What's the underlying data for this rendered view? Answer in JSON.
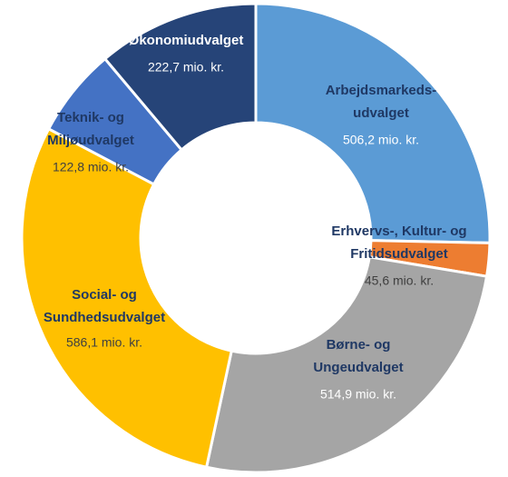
{
  "chart_data": {
    "type": "donut",
    "categories": [
      [
        "Arbejdsmarkeds-",
        "udvalget"
      ],
      [
        "Erhvervs-, Kultur- og",
        "Fritidsudvalget"
      ],
      [
        "Børne- og",
        "Ungeudvalget"
      ],
      [
        "Social- og",
        "Sundhedsudvalget"
      ],
      [
        "Teknik- og",
        "Miljøudvalget"
      ],
      [
        "Økonomiudvalget"
      ]
    ],
    "values": [
      506.2,
      45.6,
      514.9,
      586.1,
      122.8,
      222.7
    ],
    "value_labels": [
      "506,2 mio. kr.",
      "45,6 mio. kr.",
      "514,9 mio. kr.",
      "586,1 mio. kr.",
      "122,8 mio. kr.",
      "222,7 mio. kr."
    ],
    "colors": [
      "#5b9bd5",
      "#ed7d31",
      "#a5a5a5",
      "#ffc000",
      "#4472c4",
      "#264478"
    ]
  }
}
